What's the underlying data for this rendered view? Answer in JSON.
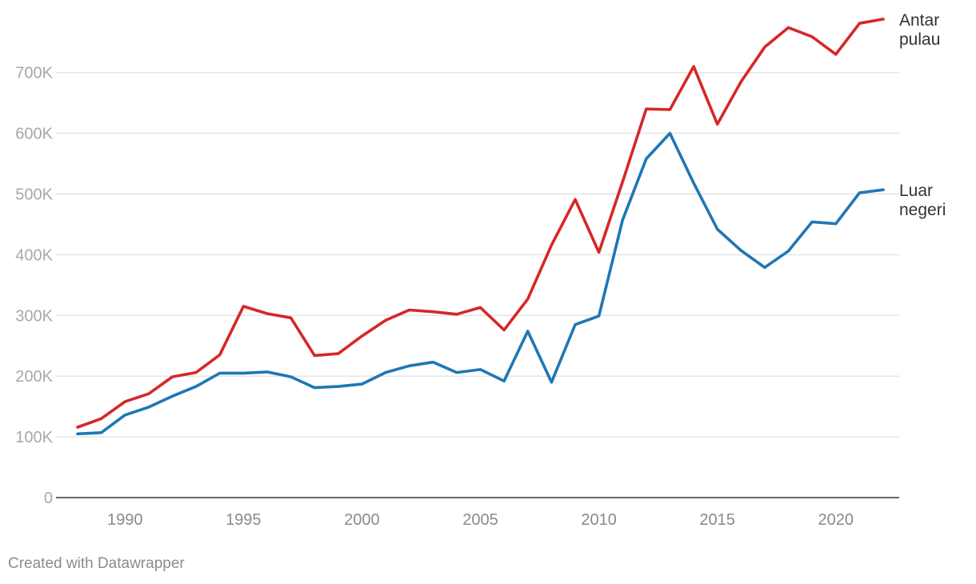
{
  "chart_data": {
    "type": "line",
    "title": "",
    "xlabel": "",
    "ylabel": "",
    "x": [
      1988,
      1989,
      1990,
      1991,
      1992,
      1993,
      1994,
      1995,
      1996,
      1997,
      1998,
      1999,
      2000,
      2001,
      2002,
      2003,
      2004,
      2005,
      2006,
      2007,
      2008,
      2009,
      2010,
      2011,
      2012,
      2013,
      2014,
      2015,
      2016,
      2017,
      2018,
      2019,
      2020,
      2021,
      2022
    ],
    "series": [
      {
        "name": "Antar pulau",
        "label_lines": [
          "Antar",
          "pulau"
        ],
        "color": "#d62728",
        "values": [
          116000,
          130000,
          158000,
          171000,
          199000,
          206000,
          235000,
          315000,
          303000,
          296000,
          234000,
          237000,
          266000,
          292000,
          309000,
          306000,
          302000,
          313000,
          276000,
          327000,
          416000,
          491000,
          404000,
          520000,
          640000,
          639000,
          710000,
          615000,
          685000,
          742000,
          774000,
          759000,
          730000,
          781000,
          788000
        ]
      },
      {
        "name": "Luar negeri",
        "label_lines": [
          "Luar",
          "negeri"
        ],
        "color": "#1f77b4",
        "values": [
          105000,
          107000,
          136000,
          149000,
          167000,
          183000,
          205000,
          205000,
          207000,
          199000,
          181000,
          183000,
          187000,
          206000,
          217000,
          223000,
          206000,
          211000,
          192000,
          274000,
          190000,
          285000,
          299000,
          457000,
          558000,
          600000,
          518000,
          442000,
          407000,
          379000,
          406000,
          454000,
          451000,
          502000,
          507000
        ]
      }
    ],
    "y_ticks": [
      0,
      100000,
      200000,
      300000,
      400000,
      500000,
      600000,
      700000
    ],
    "y_tick_labels": [
      "0",
      "100K",
      "200K",
      "300K",
      "400K",
      "500K",
      "600K",
      "700K"
    ],
    "x_ticks": [
      1990,
      1995,
      2000,
      2005,
      2010,
      2015,
      2020
    ],
    "x_tick_labels": [
      "1990",
      "1995",
      "2000",
      "2005",
      "2010",
      "2015",
      "2020"
    ],
    "xlim": [
      1988,
      2022
    ],
    "ylim": [
      0,
      790000
    ],
    "grid": true,
    "legend": "inline labels at line ends (right)"
  },
  "footer": {
    "credit": "Created with Datawrapper"
  }
}
